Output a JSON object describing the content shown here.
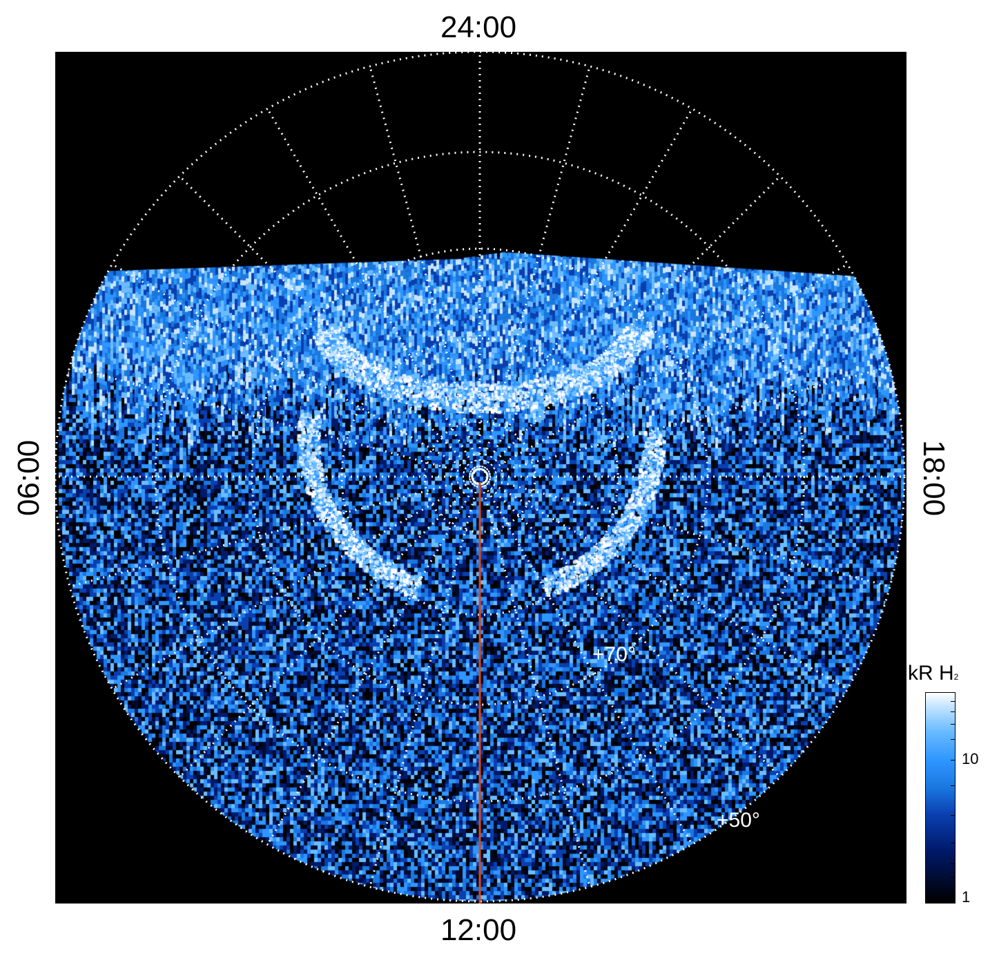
{
  "time_labels": {
    "top": "24:00",
    "bottom": "12:00",
    "left": "06:00",
    "right": "18:00"
  },
  "latitude_labels": {
    "inner": "+70°",
    "outer": "+50°"
  },
  "colorbar": {
    "title": "kR H",
    "title_subscript": "2",
    "ticks": [
      "10",
      "1"
    ],
    "scale": "log",
    "range": [
      1,
      25
    ],
    "colors": [
      "#000000",
      "#001a6b",
      "#1a78e0",
      "#6bbcff",
      "#ffffff"
    ]
  },
  "colors": {
    "background": "#000000",
    "grid": "#ffffff",
    "meridian_line": "#d94a1a",
    "emission": "#2f96ff"
  }
}
